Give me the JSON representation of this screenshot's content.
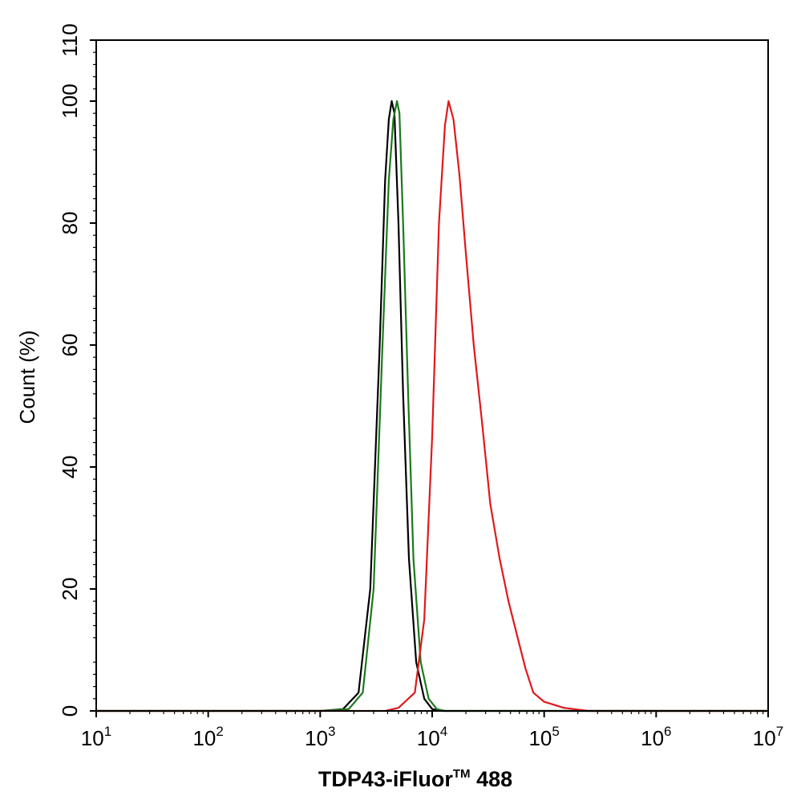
{
  "chart_data": {
    "type": "line",
    "xlabel": "TDP43-iFluor",
    "xlabel_sup": "TM",
    "xlabel_tail": " 488",
    "ylabel": "Count  (%)",
    "x_scale": "log",
    "xlim": [
      10,
      10000000
    ],
    "ylim": [
      0,
      110
    ],
    "x_ticks": [
      {
        "base": "10",
        "exp": "1",
        "value": 10
      },
      {
        "base": "10",
        "exp": "2",
        "value": 100
      },
      {
        "base": "10",
        "exp": "3",
        "value": 1000
      },
      {
        "base": "10",
        "exp": "4",
        "value": 10000
      },
      {
        "base": "10",
        "exp": "5",
        "value": 100000
      },
      {
        "base": "10",
        "exp": "6",
        "value": 1000000
      },
      {
        "base": "10",
        "exp": "7",
        "value": 10000000
      }
    ],
    "y_ticks": [
      {
        "label": "0",
        "value": 0
      },
      {
        "label": "20",
        "value": 20
      },
      {
        "label": "40",
        "value": 40
      },
      {
        "label": "60",
        "value": 60
      },
      {
        "label": "80",
        "value": 80
      },
      {
        "label": "100",
        "value": 100
      },
      {
        "label": "110",
        "value": 110
      }
    ],
    "grid": false,
    "legend": false,
    "series": [
      {
        "color": "#000000",
        "points": [
          [
            10,
            0
          ],
          [
            1000,
            0
          ],
          [
            1600,
            0.3
          ],
          [
            2200,
            3
          ],
          [
            2800,
            20
          ],
          [
            3400,
            60
          ],
          [
            3800,
            87
          ],
          [
            4100,
            97
          ],
          [
            4350,
            100
          ],
          [
            4600,
            98
          ],
          [
            5000,
            80
          ],
          [
            5500,
            52
          ],
          [
            6200,
            25
          ],
          [
            7200,
            8
          ],
          [
            8500,
            2
          ],
          [
            10000,
            0.3
          ],
          [
            12000,
            0
          ],
          [
            10000000,
            0
          ]
        ]
      },
      {
        "color": "#1b7a1b",
        "points": [
          [
            10,
            0
          ],
          [
            1000,
            0
          ],
          [
            1800,
            0.3
          ],
          [
            2400,
            3
          ],
          [
            3000,
            20
          ],
          [
            3600,
            60
          ],
          [
            4100,
            87
          ],
          [
            4500,
            97
          ],
          [
            4850,
            100
          ],
          [
            5100,
            98
          ],
          [
            5500,
            80
          ],
          [
            6100,
            52
          ],
          [
            6800,
            25
          ],
          [
            7900,
            8
          ],
          [
            9300,
            2
          ],
          [
            11000,
            0.3
          ],
          [
            13000,
            0
          ],
          [
            10000000,
            0
          ]
        ]
      },
      {
        "color": "#e0191b",
        "points": [
          [
            10,
            0
          ],
          [
            3800,
            0
          ],
          [
            5000,
            0.5
          ],
          [
            7000,
            3
          ],
          [
            8500,
            15
          ],
          [
            10000,
            45
          ],
          [
            11500,
            80
          ],
          [
            13000,
            96
          ],
          [
            14000,
            100
          ],
          [
            15500,
            97
          ],
          [
            17500,
            88
          ],
          [
            20000,
            75
          ],
          [
            23500,
            60
          ],
          [
            28000,
            47
          ],
          [
            33000,
            34
          ],
          [
            40000,
            25
          ],
          [
            48000,
            18
          ],
          [
            58000,
            12
          ],
          [
            68000,
            7
          ],
          [
            80000,
            3
          ],
          [
            100000,
            1.5
          ],
          [
            150000,
            0.5
          ],
          [
            250000,
            0
          ],
          [
            10000000,
            0
          ]
        ]
      }
    ]
  }
}
